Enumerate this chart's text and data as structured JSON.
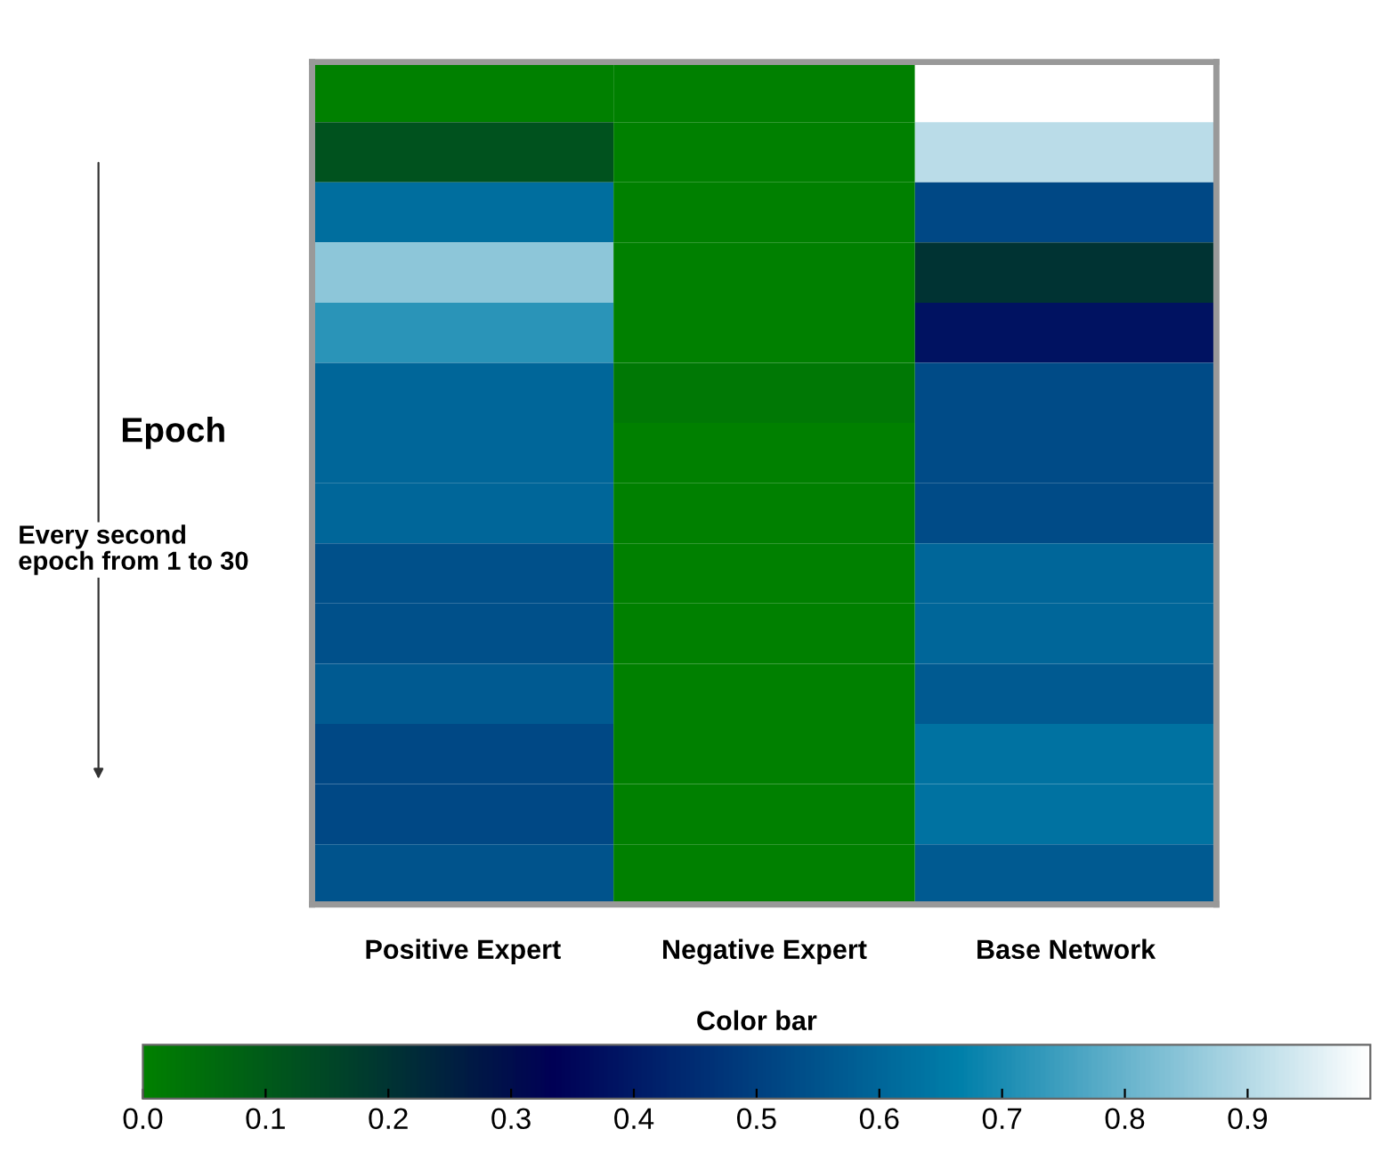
{
  "chart_data": {
    "type": "heatmap",
    "categories": [
      "Positive Expert",
      "Negative Expert",
      "Base Network"
    ],
    "y_categories": [
      null,
      null,
      null,
      null,
      null,
      null,
      null,
      null,
      null,
      null,
      null,
      null,
      null,
      null
    ],
    "ylabel": "Epoch",
    "clabel": "Color bar",
    "annotations": [
      "Every second\nepoch from 1 to 30"
    ],
    "clim": [
      0,
      1
    ],
    "cticks": [
      {
        "value": 0,
        "label": "0.0"
      },
      {
        "value": 0.1,
        "label": "0.1"
      },
      {
        "value": 0.2,
        "label": "0.2"
      },
      {
        "value": 0.3,
        "label": "0.3"
      },
      {
        "value": 0.4,
        "label": "0.4"
      },
      {
        "value": 0.5,
        "label": "0.5"
      },
      {
        "value": 0.6,
        "label": "0.6"
      },
      {
        "value": 0.7,
        "label": "0.7"
      },
      {
        "value": 0.8,
        "label": "0.8"
      },
      {
        "value": 0.9,
        "label": "0.9"
      }
    ],
    "cells": [
      [
        0.0,
        0.0,
        1.0
      ],
      [
        0.12,
        0.0,
        0.91
      ],
      [
        0.62,
        0.0,
        0.52
      ],
      [
        0.85,
        0.0,
        0.2
      ],
      [
        0.72,
        0.0,
        0.38
      ],
      [
        0.6,
        0.02,
        0.53
      ],
      [
        0.6,
        0.0,
        0.53
      ],
      [
        0.6,
        0.0,
        0.53
      ],
      [
        0.54,
        0.0,
        0.6
      ],
      [
        0.54,
        0.0,
        0.6
      ],
      [
        0.57,
        0.0,
        0.57
      ],
      [
        0.52,
        0.0,
        0.63
      ],
      [
        0.52,
        0.0,
        0.63
      ],
      [
        0.55,
        0.0,
        0.57
      ]
    ]
  }
}
